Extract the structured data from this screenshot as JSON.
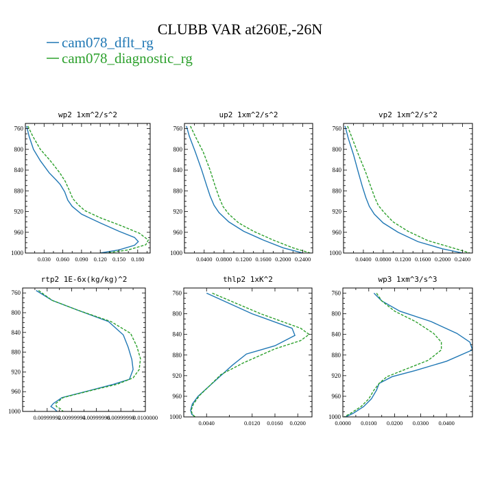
{
  "figure": {
    "title": "CLUBB VAR at260E,-26N",
    "legend": [
      {
        "name": "cam078_dflt_rg",
        "color": "#1f77b4",
        "dash": ""
      },
      {
        "name": "cam078_diagnostic_rg",
        "color": "#2ca02c",
        "dash": "4,2"
      }
    ]
  },
  "chart_data": [
    {
      "type": "line",
      "title": "wp2   1xm^2/s^2",
      "xlim": [
        0.0,
        0.2
      ],
      "ylim": [
        750,
        1000
      ],
      "y_inverted": true,
      "xticks": [
        0.03,
        0.06,
        0.09,
        0.12,
        0.15,
        0.18
      ],
      "xtick_labels": [
        "0.030",
        "0.060",
        "0.090",
        "0.120",
        "0.150",
        "0.180"
      ],
      "yticks": [
        760,
        800,
        840,
        880,
        920,
        960,
        1000
      ],
      "ytick_labels": [
        "760",
        "800",
        "840",
        "880",
        "920",
        "960",
        "1000"
      ],
      "series": [
        {
          "name": "cam078_dflt_rg",
          "x": [
            0.002,
            0.006,
            0.013,
            0.024,
            0.038,
            0.05,
            0.056,
            0.063,
            0.068,
            0.075,
            0.09,
            0.12,
            0.15,
            0.175,
            0.181,
            0.175,
            0.15,
            0.12
          ],
          "y": [
            755,
            775,
            800,
            822,
            845,
            860,
            868,
            882,
            898,
            910,
            925,
            942,
            958,
            970,
            978,
            985,
            994,
            1000
          ]
        },
        {
          "name": "cam078_diagnostic_rg",
          "x": [
            0.004,
            0.012,
            0.024,
            0.04,
            0.055,
            0.064,
            0.07,
            0.076,
            0.084,
            0.095,
            0.12,
            0.155,
            0.183,
            0.197,
            0.193,
            0.165,
            0.13
          ],
          "y": [
            755,
            775,
            800,
            822,
            845,
            862,
            878,
            895,
            906,
            918,
            932,
            948,
            962,
            975,
            984,
            994,
            1000
          ]
        }
      ]
    },
    {
      "type": "line",
      "title": "up2   1xm^2/s^2",
      "xlim": [
        0.0,
        0.26
      ],
      "ylim": [
        750,
        1000
      ],
      "y_inverted": true,
      "xticks": [
        0.04,
        0.08,
        0.12,
        0.16,
        0.2,
        0.24
      ],
      "xtick_labels": [
        "0.0400",
        "0.0800",
        "0.1200",
        "0.1600",
        "0.2000",
        "0.2400"
      ],
      "yticks": [
        760,
        800,
        840,
        880,
        920,
        960,
        1000
      ],
      "ytick_labels": [
        "760",
        "800",
        "840",
        "880",
        "920",
        "960",
        "1000"
      ],
      "series": [
        {
          "name": "cam078_dflt_rg",
          "x": [
            0.004,
            0.01,
            0.022,
            0.035,
            0.045,
            0.052,
            0.06,
            0.07,
            0.09,
            0.12,
            0.16,
            0.2,
            0.24
          ],
          "y": [
            755,
            775,
            805,
            840,
            870,
            890,
            908,
            922,
            940,
            958,
            975,
            990,
            1000
          ]
        },
        {
          "name": "cam078_diagnostic_rg",
          "x": [
            0.012,
            0.022,
            0.038,
            0.052,
            0.062,
            0.07,
            0.078,
            0.09,
            0.11,
            0.14,
            0.18,
            0.22,
            0.255
          ],
          "y": [
            755,
            775,
            805,
            840,
            870,
            892,
            910,
            925,
            942,
            958,
            975,
            990,
            1000
          ]
        }
      ]
    },
    {
      "type": "line",
      "title": "vp2   1xm^2/s^2",
      "xlim": [
        0.0,
        0.26
      ],
      "ylim": [
        750,
        1000
      ],
      "y_inverted": true,
      "xticks": [
        0.04,
        0.08,
        0.12,
        0.16,
        0.2,
        0.24
      ],
      "xtick_labels": [
        "0.0400",
        "0.0800",
        "0.1200",
        "0.1600",
        "0.2000",
        "0.2400"
      ],
      "yticks": [
        760,
        800,
        840,
        880,
        920,
        960,
        1000
      ],
      "ytick_labels": [
        "760",
        "800",
        "840",
        "880",
        "920",
        "960",
        "1000"
      ],
      "series": [
        {
          "name": "cam078_dflt_rg",
          "x": [
            0.003,
            0.01,
            0.02,
            0.03,
            0.038,
            0.045,
            0.052,
            0.062,
            0.08,
            0.11,
            0.15,
            0.2,
            0.24
          ],
          "y": [
            755,
            780,
            810,
            845,
            872,
            893,
            910,
            925,
            942,
            960,
            978,
            992,
            1000
          ]
        },
        {
          "name": "cam078_diagnostic_rg",
          "x": [
            0.008,
            0.018,
            0.03,
            0.045,
            0.055,
            0.063,
            0.07,
            0.082,
            0.1,
            0.13,
            0.17,
            0.22,
            0.255
          ],
          "y": [
            755,
            780,
            810,
            845,
            872,
            893,
            908,
            922,
            940,
            958,
            976,
            990,
            1000
          ]
        }
      ]
    },
    {
      "type": "line",
      "title": "rtp2   1E-6x(kg/kg)^2",
      "xlim": [
        0.0099999,
        0.01
      ],
      "ylim": [
        750,
        1000
      ],
      "y_inverted": true,
      "xticks": [
        0.00999992,
        0.00999994,
        0.00999996,
        0.00999998,
        0.01
      ],
      "xtick_labels": [
        "0.00999992",
        "0.00999994",
        "0.00999996",
        "0.00999998",
        "0.0100000"
      ],
      "yticks": [
        760,
        800,
        840,
        880,
        920,
        960,
        1000
      ],
      "ytick_labels": [
        "760",
        "800",
        "840",
        "880",
        "920",
        "960",
        "1000"
      ],
      "series": [
        {
          "name": "cam078_dflt_rg",
          "x": [
            0.009999911,
            0.009999924,
            0.009999945,
            0.00999997,
            0.009999982,
            0.009999986,
            0.009999989,
            0.00999999,
            0.009999987,
            0.009999974,
            0.009999954,
            0.009999932,
            0.009999925,
            0.009999923,
            0.009999926,
            0.009999928
          ],
          "y": [
            755,
            775,
            795,
            818,
            845,
            870,
            895,
            915,
            935,
            945,
            958,
            972,
            984,
            990,
            995,
            1000
          ]
        },
        {
          "name": "cam078_diagnostic_rg",
          "x": [
            0.009999913,
            0.009999924,
            0.009999945,
            0.009999972,
            0.009999988,
            0.009999993,
            0.009999996,
            0.009999995,
            0.00999999,
            0.009999977,
            0.009999955,
            0.009999933,
            0.009999927,
            0.0099999275,
            0.009999931,
            0.009999933
          ],
          "y": [
            755,
            775,
            795,
            818,
            842,
            868,
            893,
            915,
            932,
            945,
            958,
            972,
            984,
            990,
            995,
            1000
          ]
        }
      ]
    },
    {
      "type": "line",
      "title": "thlp2   1xK^2",
      "xlim": [
        0.0,
        0.0225
      ],
      "ylim": [
        750,
        1000
      ],
      "y_inverted": true,
      "xticks": [
        0.004,
        0.012,
        0.016,
        0.02
      ],
      "xtick_labels": [
        "0.0040",
        "0.0120",
        "0.0160",
        "0.0200"
      ],
      "yticks": [
        760,
        800,
        840,
        880,
        920,
        960,
        1000
      ],
      "ytick_labels": [
        "760",
        "800",
        "840",
        "880",
        "920",
        "960",
        "1000"
      ],
      "series": [
        {
          "name": "cam078_dflt_rg",
          "x": [
            0.004,
            0.012,
            0.019,
            0.0195,
            0.016,
            0.011,
            0.0085,
            0.006,
            0.004,
            0.0025,
            0.0015,
            0.0012,
            0.0014,
            0.002
          ],
          "y": [
            760,
            800,
            828,
            842,
            862,
            878,
            900,
            925,
            945,
            960,
            975,
            987,
            995,
            1000
          ]
        },
        {
          "name": "cam078_diagnostic_rg",
          "x": [
            0.005,
            0.0135,
            0.0205,
            0.022,
            0.0205,
            0.016,
            0.0105,
            0.0065,
            0.0045,
            0.0028,
            0.0017,
            0.0013,
            0.0015,
            0.002
          ],
          "y": [
            760,
            800,
            828,
            840,
            852,
            868,
            895,
            918,
            940,
            958,
            975,
            987,
            995,
            1000
          ]
        }
      ]
    },
    {
      "type": "line",
      "title": "wp3   1xm^3/s^3",
      "xlim": [
        0.0,
        0.05
      ],
      "ylim": [
        750,
        1000
      ],
      "y_inverted": true,
      "xticks": [
        0.0,
        0.01,
        0.02,
        0.03,
        0.04
      ],
      "xtick_labels": [
        "0.0000",
        "0.0100",
        "0.0200",
        "0.0300",
        "0.0400"
      ],
      "yticks": [
        760,
        800,
        840,
        880,
        920,
        960,
        1000
      ],
      "ytick_labels": [
        "760",
        "800",
        "840",
        "880",
        "920",
        "960",
        "1000"
      ],
      "series": [
        {
          "name": "cam078_dflt_rg",
          "x": [
            0.012,
            0.015,
            0.022,
            0.034,
            0.044,
            0.049,
            0.05,
            0.04,
            0.028,
            0.019,
            0.014,
            0.013,
            0.011,
            0.008,
            0.004,
            0.001
          ],
          "y": [
            760,
            775,
            795,
            815,
            838,
            855,
            870,
            892,
            910,
            922,
            935,
            948,
            965,
            980,
            993,
            1000
          ]
        },
        {
          "name": "cam078_diagnostic_rg",
          "x": [
            0.013,
            0.015,
            0.02,
            0.028,
            0.035,
            0.038,
            0.038,
            0.033,
            0.024,
            0.017,
            0.014,
            0.012,
            0.01,
            0.007,
            0.003,
            0.0005
          ],
          "y": [
            760,
            775,
            795,
            815,
            838,
            855,
            870,
            890,
            908,
            922,
            935,
            948,
            965,
            980,
            993,
            1000
          ]
        }
      ]
    }
  ]
}
